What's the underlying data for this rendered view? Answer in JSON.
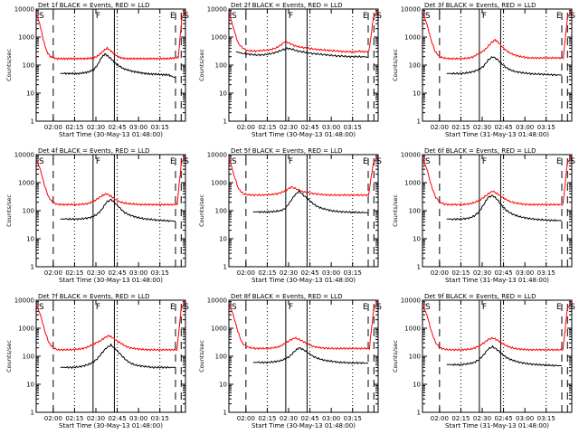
{
  "chart_data": [
    {
      "type": "line",
      "title": "Det 1f  BLACK = Events, RED = LLD",
      "xlabel": "Start Time (30-May-13 01:48:00)",
      "ylabel": "Counts/sec",
      "x_ticks": [
        "02:00",
        "02:15",
        "02:30",
        "02:45",
        "03:00",
        "03:15"
      ],
      "y_ticks": [
        "1",
        "10",
        "100",
        "1000",
        "10000"
      ],
      "corner_labels": [
        "S",
        "F",
        "E",
        "S"
      ],
      "xlim_min": [
        0,
        105
      ],
      "ylim": [
        1,
        10000
      ],
      "y_scale": "log",
      "dashed_x_min": [
        12,
        98,
        102
      ],
      "dotted_x_min": [
        27,
        57,
        87
      ],
      "solid_x_min": [
        40,
        55
      ],
      "series": [
        {
          "color": "#ff0000",
          "start": 0,
          "end": 105,
          "values": [
            7000,
            3000,
            800,
            300,
            200,
            180,
            170,
            170,
            170,
            170,
            170,
            170,
            170,
            170,
            170,
            175,
            180,
            200,
            250,
            330,
            400,
            320,
            250,
            200,
            180,
            170,
            170,
            170,
            170,
            170,
            170,
            170,
            170,
            170,
            170,
            170,
            170,
            170,
            175,
            180,
            190,
            5000,
            9000
          ]
        },
        {
          "color": "#000000",
          "start": 17,
          "end": 98,
          "values": [
            50,
            50,
            50,
            50,
            50,
            50,
            52,
            55,
            60,
            70,
            100,
            180,
            250,
            200,
            150,
            110,
            90,
            75,
            68,
            62,
            58,
            55,
            52,
            50,
            48,
            48,
            47,
            46,
            45,
            45,
            40,
            35
          ]
        }
      ]
    },
    {
      "type": "line",
      "title": "Det 2f  BLACK = Events, RED = LLD",
      "xlabel": "Start Time (30-May-13 01:48:00)",
      "ylabel": "Counts/sec",
      "x_ticks": [
        "02:00",
        "02:15",
        "02:30",
        "02:45",
        "03:00",
        "03:15"
      ],
      "y_ticks": [
        "1",
        "10",
        "100",
        "1000",
        "10000"
      ],
      "corner_labels": [
        "S",
        "F",
        "E",
        "S"
      ],
      "xlim_min": [
        0,
        105
      ],
      "ylim": [
        1,
        10000
      ],
      "y_scale": "log",
      "dashed_x_min": [
        12,
        98,
        102
      ],
      "dotted_x_min": [
        27,
        57,
        87
      ],
      "solid_x_min": [
        40,
        55
      ],
      "series": [
        {
          "color": "#ff0000",
          "start": 0,
          "end": 105,
          "values": [
            8000,
            2000,
            600,
            400,
            330,
            320,
            320,
            330,
            340,
            360,
            400,
            500,
            700,
            600,
            500,
            450,
            420,
            400,
            380,
            360,
            350,
            340,
            330,
            320,
            310,
            300,
            300,
            300,
            310,
            300,
            300,
            5000,
            9000
          ]
        },
        {
          "color": "#000000",
          "start": 5,
          "end": 98,
          "values": [
            300,
            270,
            250,
            240,
            230,
            230,
            240,
            260,
            290,
            340,
            400,
            370,
            320,
            300,
            280,
            260,
            250,
            240,
            230,
            220,
            210,
            210,
            200,
            200,
            200,
            200,
            190
          ]
        }
      ]
    },
    {
      "type": "line",
      "title": "Det 3f  BLACK = Events, RED = LLD",
      "xlabel": "Start Time (31-May-13 01:48:00)",
      "ylabel": "Counts/sec",
      "x_ticks": [
        "02:00",
        "02:15",
        "02:30",
        "02:45",
        "03:00",
        "03:15"
      ],
      "y_ticks": [
        "1",
        "10",
        "100",
        "1000",
        "10000"
      ],
      "corner_labels": [
        "S",
        "F",
        "E",
        "S"
      ],
      "xlim_min": [
        0,
        105
      ],
      "ylim": [
        1,
        10000
      ],
      "y_scale": "log",
      "dashed_x_min": [
        12,
        98,
        102
      ],
      "dotted_x_min": [
        27,
        57,
        87
      ],
      "solid_x_min": [
        40,
        55
      ],
      "series": [
        {
          "color": "#ff0000",
          "start": 0,
          "end": 105,
          "values": [
            8000,
            3000,
            800,
            300,
            200,
            180,
            170,
            170,
            170,
            170,
            175,
            180,
            200,
            250,
            300,
            400,
            600,
            800,
            600,
            400,
            300,
            250,
            220,
            200,
            190,
            180,
            180,
            180,
            180,
            180,
            180,
            180,
            180,
            180,
            5000,
            9000
          ]
        },
        {
          "color": "#000000",
          "start": 17,
          "end": 98,
          "values": [
            50,
            50,
            50,
            50,
            52,
            55,
            60,
            70,
            90,
            150,
            200,
            160,
            110,
            80,
            65,
            58,
            55,
            52,
            50,
            48,
            48,
            47,
            46,
            45,
            45,
            44
          ]
        }
      ]
    },
    {
      "type": "line",
      "title": "Det 4f  BLACK = Events, RED = LLD",
      "xlabel": "Start Time (30-May-13 01:48:00)",
      "ylabel": "Counts/sec",
      "x_ticks": [
        "02:00",
        "02:15",
        "02:30",
        "02:45",
        "03:00",
        "03:15"
      ],
      "y_ticks": [
        "1",
        "10",
        "100",
        "1000",
        "10000"
      ],
      "corner_labels": [
        "S",
        "F",
        "E",
        "S"
      ],
      "xlim_min": [
        0,
        105
      ],
      "ylim": [
        1,
        10000
      ],
      "y_scale": "log",
      "dashed_x_min": [
        12,
        98,
        102
      ],
      "dotted_x_min": [
        27,
        57,
        87
      ],
      "solid_x_min": [
        40,
        55
      ],
      "series": [
        {
          "color": "#ff0000",
          "start": 0,
          "end": 105,
          "values": [
            7000,
            3000,
            800,
            300,
            200,
            170,
            165,
            165,
            165,
            165,
            165,
            170,
            175,
            190,
            220,
            280,
            350,
            400,
            330,
            260,
            210,
            190,
            180,
            175,
            170,
            165,
            165,
            165,
            165,
            165,
            165,
            165,
            165,
            165,
            170,
            5000,
            9000
          ]
        },
        {
          "color": "#000000",
          "start": 17,
          "end": 98,
          "values": [
            50,
            50,
            50,
            50,
            50,
            52,
            55,
            60,
            75,
            110,
            200,
            250,
            180,
            120,
            85,
            70,
            62,
            56,
            52,
            50,
            48,
            46,
            45,
            44,
            43,
            42
          ]
        }
      ]
    },
    {
      "type": "line",
      "title": "Det 5f  BLACK = Events, RED = LLD",
      "xlabel": "Start Time (30-May-13 01:48:00)",
      "ylabel": "Counts/sec",
      "x_ticks": [
        "02:00",
        "02:15",
        "02:30",
        "02:45",
        "03:00",
        "03:15"
      ],
      "y_ticks": [
        "1",
        "10",
        "100",
        "1000",
        "10000"
      ],
      "corner_labels": [
        "S",
        "F",
        "E",
        "S"
      ],
      "xlim_min": [
        0,
        105
      ],
      "ylim": [
        1,
        10000
      ],
      "y_scale": "log",
      "dashed_x_min": [
        12,
        98,
        102
      ],
      "dotted_x_min": [
        27,
        57,
        87
      ],
      "solid_x_min": [
        40,
        55
      ],
      "series": [
        {
          "color": "#ff0000",
          "start": 0,
          "end": 105,
          "values": [
            8000,
            2000,
            600,
            400,
            370,
            360,
            360,
            360,
            370,
            380,
            400,
            450,
            550,
            700,
            600,
            500,
            450,
            420,
            400,
            380,
            370,
            360,
            360,
            360,
            360,
            360,
            360,
            360,
            360,
            360,
            5000,
            9000
          ]
        },
        {
          "color": "#000000",
          "start": 17,
          "end": 98,
          "values": [
            90,
            90,
            90,
            90,
            92,
            95,
            100,
            120,
            200,
            350,
            500,
            350,
            250,
            180,
            140,
            120,
            110,
            100,
            95,
            92,
            90,
            88,
            88,
            86,
            85,
            85
          ]
        }
      ]
    },
    {
      "type": "line",
      "title": "Det 6f  BLACK = Events, RED = LLD",
      "xlabel": "Start Time (31-May-13 01:48:00)",
      "ylabel": "Counts/sec",
      "x_ticks": [
        "02:00",
        "02:15",
        "02:30",
        "02:45",
        "03:00",
        "03:15"
      ],
      "y_ticks": [
        "1",
        "10",
        "100",
        "1000",
        "10000"
      ],
      "corner_labels": [
        "S",
        "F",
        "E",
        "S"
      ],
      "xlim_min": [
        0,
        105
      ],
      "ylim": [
        1,
        10000
      ],
      "y_scale": "log",
      "dashed_x_min": [
        12,
        98,
        102
      ],
      "dotted_x_min": [
        27,
        57,
        87
      ],
      "solid_x_min": [
        40,
        55
      ],
      "series": [
        {
          "color": "#ff0000",
          "start": 0,
          "end": 105,
          "values": [
            8000,
            3000,
            800,
            300,
            200,
            170,
            165,
            165,
            165,
            165,
            170,
            180,
            200,
            240,
            300,
            400,
            500,
            400,
            320,
            250,
            210,
            190,
            180,
            170,
            165,
            165,
            165,
            165,
            165,
            165,
            165,
            165,
            165,
            5000,
            9000
          ]
        },
        {
          "color": "#000000",
          "start": 17,
          "end": 98,
          "values": [
            50,
            50,
            50,
            50,
            52,
            55,
            65,
            90,
            160,
            300,
            350,
            250,
            150,
            100,
            80,
            68,
            60,
            56,
            52,
            50,
            48,
            47,
            46,
            45,
            45,
            44
          ]
        }
      ]
    },
    {
      "type": "line",
      "title": "Det 7f  BLACK = Events, RED = LLD",
      "xlabel": "Start Time (30-May-13 01:48:00)",
      "ylabel": "Counts/sec",
      "x_ticks": [
        "02:00",
        "02:15",
        "02:30",
        "02:45",
        "03:00",
        "03:15"
      ],
      "y_ticks": [
        "1",
        "10",
        "100",
        "1000",
        "10000"
      ],
      "corner_labels": [
        "S",
        "F",
        "E",
        "S"
      ],
      "xlim_min": [
        0,
        105
      ],
      "ylim": [
        1,
        10000
      ],
      "y_scale": "log",
      "dashed_x_min": [
        12,
        98,
        102
      ],
      "dotted_x_min": [
        27,
        57,
        87
      ],
      "solid_x_min": [
        40,
        55
      ],
      "series": [
        {
          "color": "#ff0000",
          "start": 0,
          "end": 105,
          "values": [
            7000,
            3000,
            800,
            300,
            200,
            170,
            170,
            170,
            170,
            175,
            180,
            190,
            210,
            250,
            300,
            350,
            450,
            550,
            450,
            350,
            280,
            230,
            200,
            190,
            180,
            175,
            170,
            170,
            170,
            170,
            170,
            170,
            170,
            170,
            5000,
            9000
          ]
        },
        {
          "color": "#000000",
          "start": 17,
          "end": 98,
          "values": [
            40,
            40,
            40,
            40,
            42,
            45,
            50,
            60,
            80,
            130,
            200,
            250,
            180,
            120,
            80,
            60,
            50,
            46,
            44,
            42,
            40,
            40,
            40,
            40,
            40,
            40
          ]
        }
      ]
    },
    {
      "type": "line",
      "title": "Det 8f  BLACK = Events, RED = LLD",
      "xlabel": "Start Time (30-May-13 01:48:00)",
      "ylabel": "Counts/sec",
      "x_ticks": [
        "02:00",
        "02:15",
        "02:30",
        "02:45",
        "03:00",
        "03:15"
      ],
      "y_ticks": [
        "1",
        "10",
        "100",
        "1000",
        "10000"
      ],
      "corner_labels": [
        "S",
        "F",
        "E",
        "S"
      ],
      "xlim_min": [
        0,
        105
      ],
      "ylim": [
        1,
        10000
      ],
      "y_scale": "log",
      "dashed_x_min": [
        12,
        98,
        102
      ],
      "dotted_x_min": [
        27,
        57,
        87
      ],
      "solid_x_min": [
        40,
        55
      ],
      "series": [
        {
          "color": "#ff0000",
          "start": 0,
          "end": 105,
          "values": [
            8000,
            3000,
            800,
            300,
            220,
            200,
            190,
            190,
            190,
            190,
            200,
            210,
            240,
            300,
            380,
            450,
            400,
            330,
            270,
            230,
            210,
            200,
            195,
            190,
            190,
            190,
            190,
            190,
            190,
            190,
            190,
            190,
            190,
            5000,
            9000
          ]
        },
        {
          "color": "#000000",
          "start": 17,
          "end": 98,
          "values": [
            60,
            60,
            60,
            60,
            62,
            65,
            70,
            80,
            100,
            150,
            200,
            170,
            130,
            100,
            85,
            75,
            70,
            66,
            63,
            60,
            60,
            58,
            58,
            58,
            57,
            57
          ]
        }
      ]
    },
    {
      "type": "line",
      "title": "Det 9f  BLACK = Events, RED = LLD",
      "xlabel": "Start Time (31-May-13 01:48:00)",
      "ylabel": "Counts/sec",
      "x_ticks": [
        "02:00",
        "02:15",
        "02:30",
        "02:45",
        "03:00",
        "03:15"
      ],
      "y_ticks": [
        "1",
        "10",
        "100",
        "1000",
        "10000"
      ],
      "corner_labels": [
        "S",
        "F",
        "E",
        "S"
      ],
      "xlim_min": [
        0,
        105
      ],
      "ylim": [
        1,
        10000
      ],
      "y_scale": "log",
      "dashed_x_min": [
        12,
        98,
        102
      ],
      "dotted_x_min": [
        27,
        57,
        87
      ],
      "solid_x_min": [
        40,
        55
      ],
      "series": [
        {
          "color": "#ff0000",
          "start": 0,
          "end": 105,
          "values": [
            7000,
            3000,
            800,
            300,
            200,
            180,
            170,
            170,
            170,
            170,
            175,
            180,
            200,
            240,
            300,
            400,
            450,
            380,
            300,
            240,
            210,
            190,
            180,
            175,
            170,
            170,
            170,
            170,
            170,
            170,
            170,
            170,
            170,
            5000,
            9000
          ]
        },
        {
          "color": "#000000",
          "start": 17,
          "end": 98,
          "values": [
            50,
            50,
            50,
            50,
            52,
            55,
            60,
            75,
            110,
            180,
            220,
            170,
            120,
            90,
            75,
            66,
            60,
            56,
            53,
            51,
            50,
            49,
            48,
            47,
            46,
            46
          ]
        }
      ]
    }
  ]
}
